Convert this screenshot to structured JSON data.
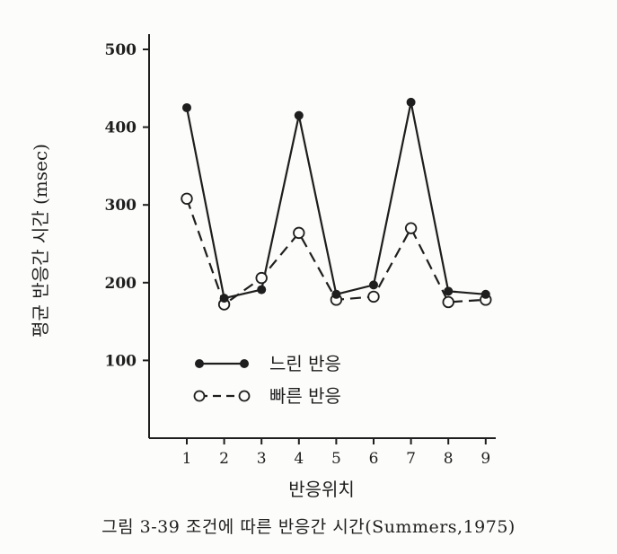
{
  "chart_data": {
    "type": "line",
    "ylabel": "평균 반응간 시간 (msec)",
    "xlabel": "반응위치",
    "yticks": [
      "100",
      "200",
      "300",
      "400",
      "500"
    ],
    "ylim": [
      0,
      500
    ],
    "x": [
      1,
      2,
      3,
      4,
      5,
      6,
      7,
      8,
      9
    ],
    "xtick_labels": [
      "1",
      "2",
      "3",
      "4",
      "5",
      "6",
      "7",
      "8",
      "9"
    ],
    "series": [
      {
        "name": "느린 반응",
        "style": "solid",
        "marker": "filled",
        "values": [
          425,
          180,
          191,
          415,
          185,
          197,
          432,
          189,
          185
        ]
      },
      {
        "name": "빠른 반응",
        "style": "dashed",
        "marker": "open",
        "values": [
          308,
          172,
          206,
          264,
          178,
          182,
          270,
          175,
          178
        ]
      }
    ],
    "legend_position": "inside-bottom-left",
    "grid": false
  },
  "caption": "그림 3-39 조건에 따른 반응간 시간(Summers,1975)"
}
